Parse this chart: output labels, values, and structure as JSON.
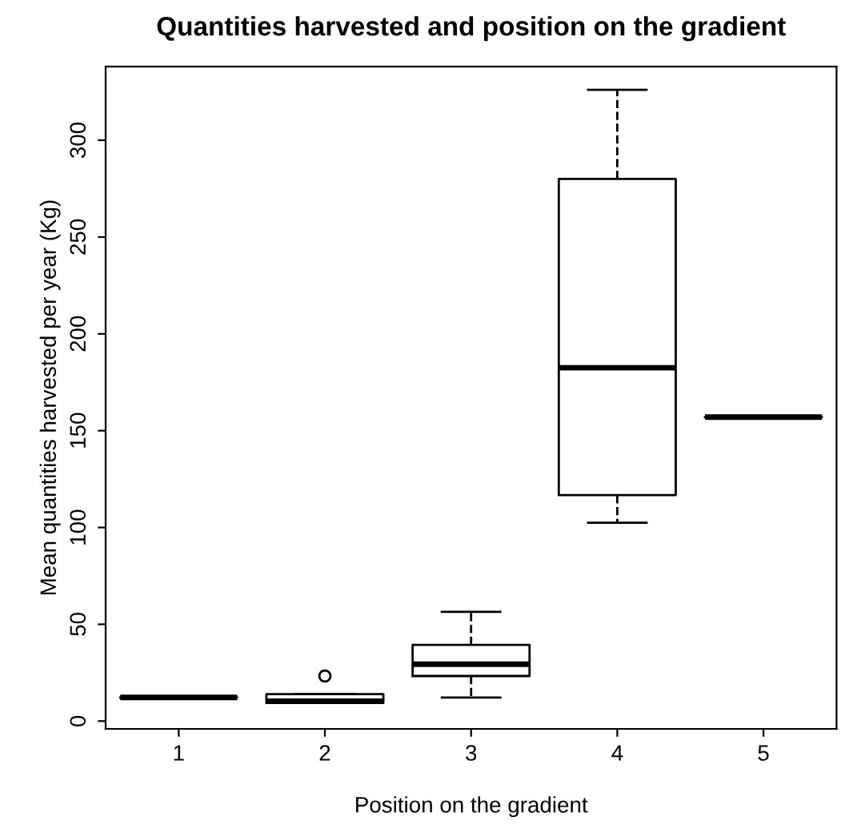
{
  "chart_data": {
    "type": "box",
    "title": "Quantities harvested and position on the gradient",
    "xlabel": "Position on the gradient",
    "ylabel": "Mean quantities harvested per year (Kg)",
    "categories": [
      "1",
      "2",
      "3",
      "4",
      "5"
    ],
    "boxes": [
      {
        "low": 12.2,
        "q1": 12.2,
        "median": 12.2,
        "q3": 12.2,
        "high": 12.2
      },
      {
        "low": 9.4,
        "q1": 9.4,
        "median": 10.3,
        "q3": 13.9,
        "high": 13.9,
        "outliers": [
          23.3
        ]
      },
      {
        "low": 12.2,
        "q1": 23.3,
        "median": 29.4,
        "q3": 39.4,
        "high": 56.4
      },
      {
        "low": 102.5,
        "q1": 116.7,
        "median": 182.5,
        "q3": 280,
        "high": 326
      },
      {
        "low": 157,
        "q1": 157,
        "median": 157,
        "q3": 157,
        "high": 157
      }
    ],
    "ylim": [
      -4,
      338
    ],
    "yticks": [
      0,
      50,
      100,
      150,
      200,
      250,
      300
    ],
    "grid": false
  }
}
